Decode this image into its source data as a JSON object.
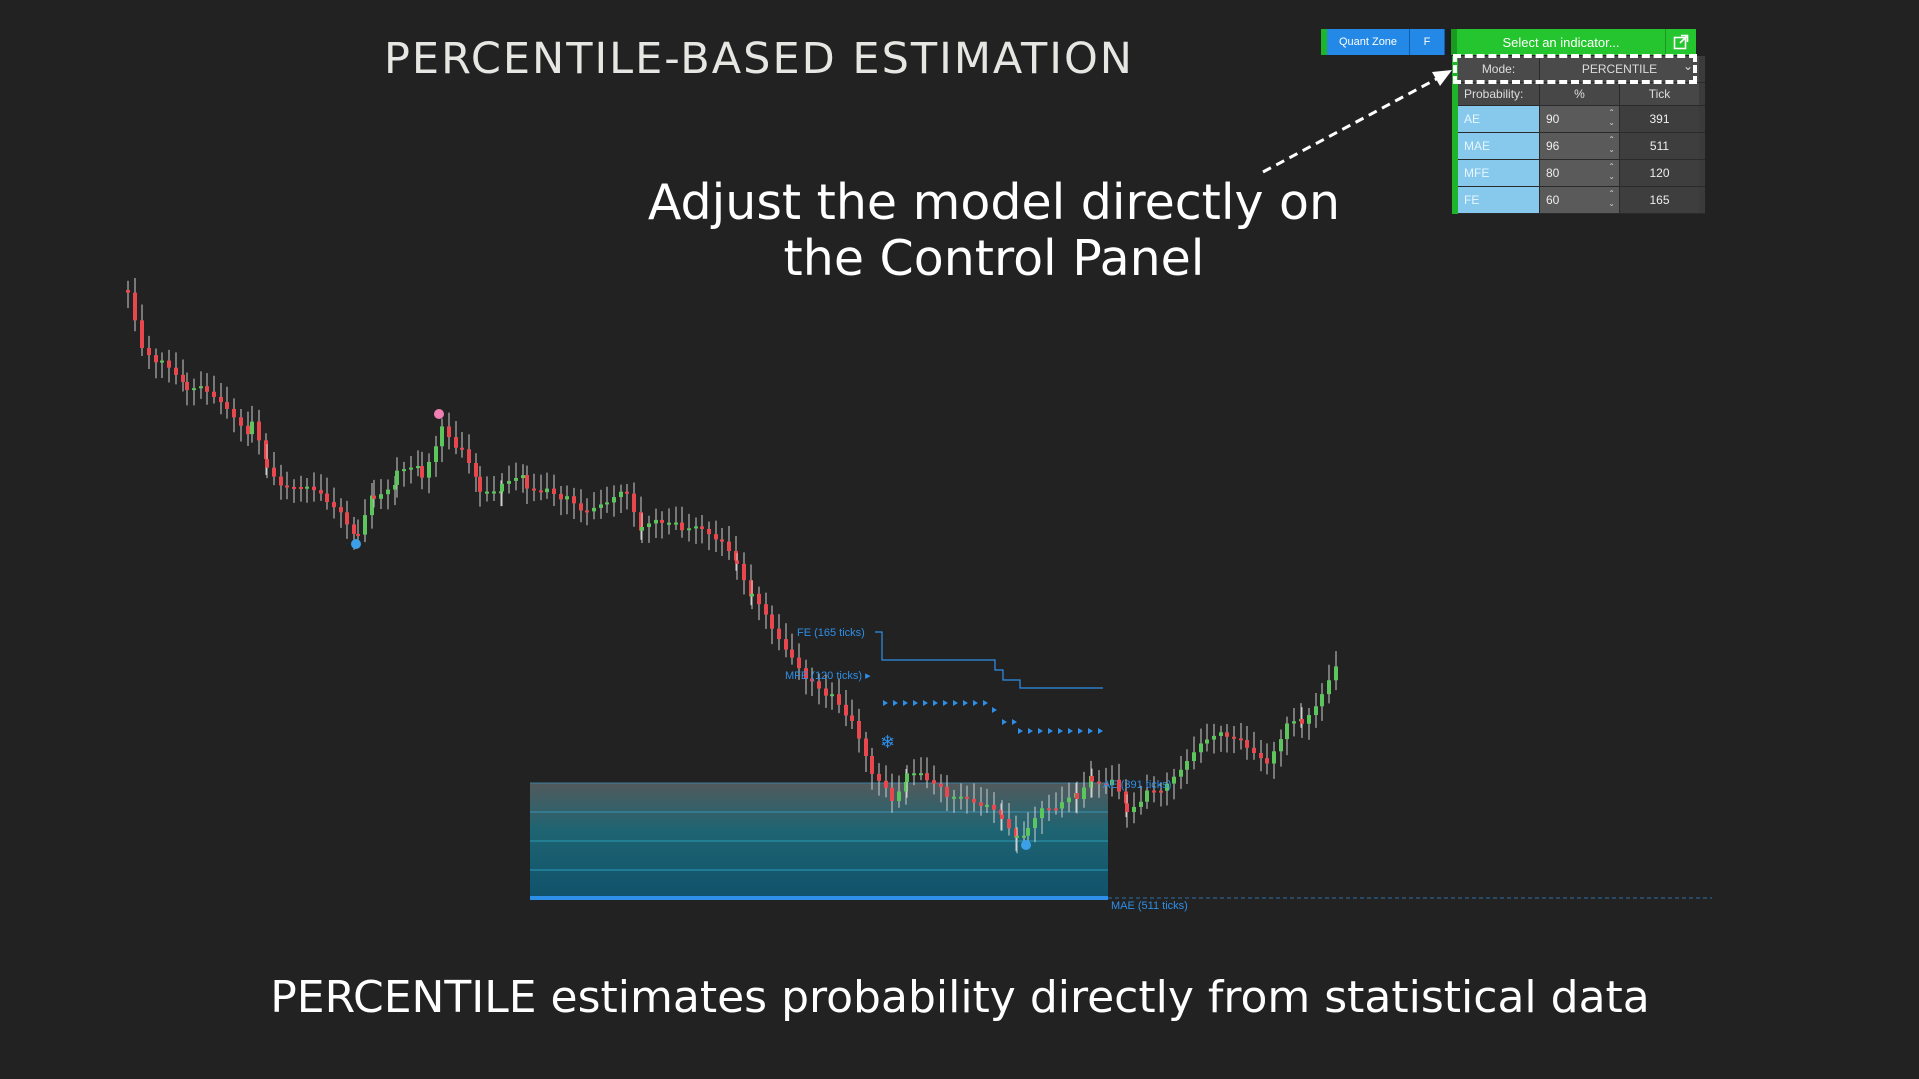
{
  "title": "PERCENTILE-BASED ESTIMATION",
  "callout": {
    "line1": "Adjust the model directly on",
    "line2": "the Control Panel"
  },
  "footer": "PERCENTILE estimates probability directly from statistical data",
  "toolbar": {
    "quant_zone_label": "Quant Zone",
    "f_label": "F",
    "indicator_select_label": "Select an indicator..."
  },
  "panel": {
    "mode_label": "Mode:",
    "mode_value": "PERCENTILE",
    "headers": {
      "probability": "Probability:",
      "percent": "%",
      "tick": "Tick"
    },
    "rows": [
      {
        "name": "AE",
        "percent": "90",
        "tick": "391"
      },
      {
        "name": "MAE",
        "percent": "96",
        "tick": "511"
      },
      {
        "name": "MFE",
        "percent": "80",
        "tick": "120"
      },
      {
        "name": "FE",
        "percent": "60",
        "tick": "165"
      }
    ]
  },
  "chart_labels": {
    "fe": "FE (165 ticks)",
    "mfe": "MFE (120 ticks) ▸",
    "ae": "AE (391 ticks)",
    "mae": "MAE (511 ticks)"
  },
  "colors": {
    "bull": "#5cc55c",
    "bear": "#e8474d",
    "level": "#2e8fe8",
    "zone_top": "#5a6466",
    "zone_bottom": "#0f5f7a",
    "panel_label_bg": "#86c9ec",
    "toolbar_green": "#24c52e",
    "toolbar_blue": "#2388e6"
  }
}
